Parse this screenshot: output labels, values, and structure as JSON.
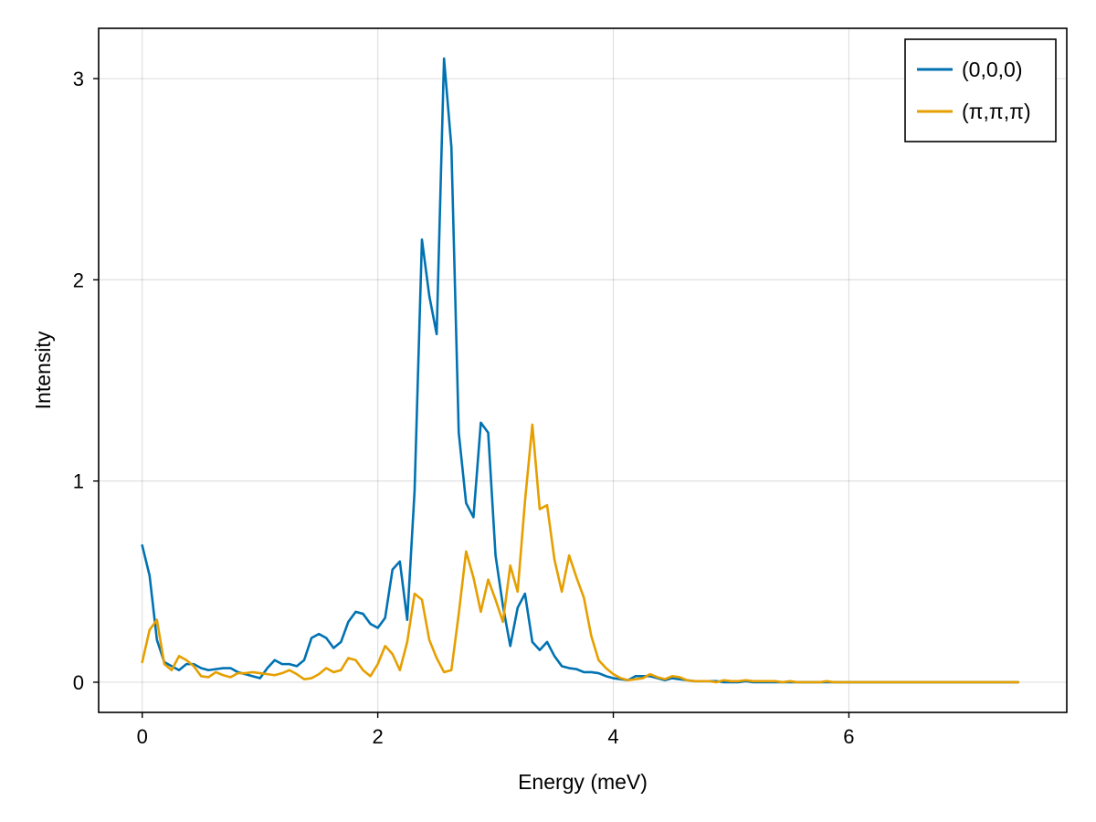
{
  "chart_data": {
    "type": "line",
    "title": "",
    "xlabel": "Energy (meV)",
    "ylabel": "Intensity",
    "xlim": [
      -0.37,
      7.85
    ],
    "ylim": [
      -0.15,
      3.25
    ],
    "xticks": [
      0,
      2,
      4,
      6
    ],
    "xtick_labels": [
      "0",
      "2",
      "4",
      "6"
    ],
    "yticks": [
      0,
      1,
      2,
      3
    ],
    "ytick_labels": [
      "0",
      "1",
      "2",
      "3"
    ],
    "grid": true,
    "legend_position": "top-right",
    "x_start": 0,
    "x_step": 0.0625,
    "series": [
      {
        "name": "(0,0,0)",
        "color": "#0072b2",
        "values": [
          0.68,
          0.53,
          0.21,
          0.1,
          0.08,
          0.06,
          0.09,
          0.09,
          0.07,
          0.06,
          0.065,
          0.07,
          0.07,
          0.05,
          0.04,
          0.03,
          0.02,
          0.07,
          0.11,
          0.09,
          0.09,
          0.08,
          0.11,
          0.22,
          0.24,
          0.22,
          0.17,
          0.2,
          0.3,
          0.35,
          0.34,
          0.29,
          0.27,
          0.32,
          0.56,
          0.6,
          0.31,
          0.95,
          2.2,
          1.92,
          1.73,
          3.1,
          2.66,
          1.24,
          0.89,
          0.82,
          1.29,
          1.24,
          0.63,
          0.38,
          0.18,
          0.37,
          0.44,
          0.2,
          0.16,
          0.2,
          0.13,
          0.08,
          0.07,
          0.065,
          0.05,
          0.05,
          0.045,
          0.03,
          0.02,
          0.015,
          0.01,
          0.03,
          0.03,
          0.03,
          0.02,
          0.01,
          0.02,
          0.015,
          0.01,
          0.005,
          0.005,
          0.005,
          0.005,
          0,
          0,
          0,
          0.005,
          0,
          0,
          0,
          0,
          0,
          0,
          0,
          0,
          0,
          0,
          0,
          0,
          0,
          0,
          0,
          0,
          0,
          0,
          0,
          0,
          0,
          0,
          0,
          0,
          0,
          0,
          0,
          0,
          0,
          0,
          0,
          0,
          0,
          0,
          0,
          0,
          0
        ]
      },
      {
        "name": "(π,π,π)",
        "color": "#e69f00",
        "values": [
          0.1,
          0.26,
          0.31,
          0.09,
          0.06,
          0.13,
          0.11,
          0.08,
          0.03,
          0.025,
          0.05,
          0.035,
          0.025,
          0.045,
          0.045,
          0.05,
          0.045,
          0.04,
          0.035,
          0.045,
          0.06,
          0.04,
          0.015,
          0.02,
          0.04,
          0.07,
          0.05,
          0.06,
          0.12,
          0.11,
          0.06,
          0.03,
          0.09,
          0.18,
          0.14,
          0.06,
          0.2,
          0.44,
          0.41,
          0.21,
          0.12,
          0.05,
          0.06,
          0.34,
          0.65,
          0.52,
          0.35,
          0.51,
          0.41,
          0.3,
          0.58,
          0.45,
          0.9,
          1.28,
          0.86,
          0.88,
          0.61,
          0.45,
          0.63,
          0.52,
          0.42,
          0.23,
          0.11,
          0.07,
          0.04,
          0.02,
          0.01,
          0.015,
          0.02,
          0.04,
          0.025,
          0.015,
          0.03,
          0.025,
          0.01,
          0.005,
          0.005,
          0.005,
          0,
          0.01,
          0.005,
          0.005,
          0.01,
          0.005,
          0.005,
          0.005,
          0.005,
          0,
          0.005,
          0,
          0,
          0,
          0,
          0.005,
          0,
          0,
          0,
          0,
          0,
          0,
          0,
          0,
          0,
          0,
          0,
          0,
          0,
          0,
          0,
          0,
          0,
          0,
          0,
          0,
          0,
          0,
          0,
          0,
          0,
          0
        ]
      }
    ]
  }
}
